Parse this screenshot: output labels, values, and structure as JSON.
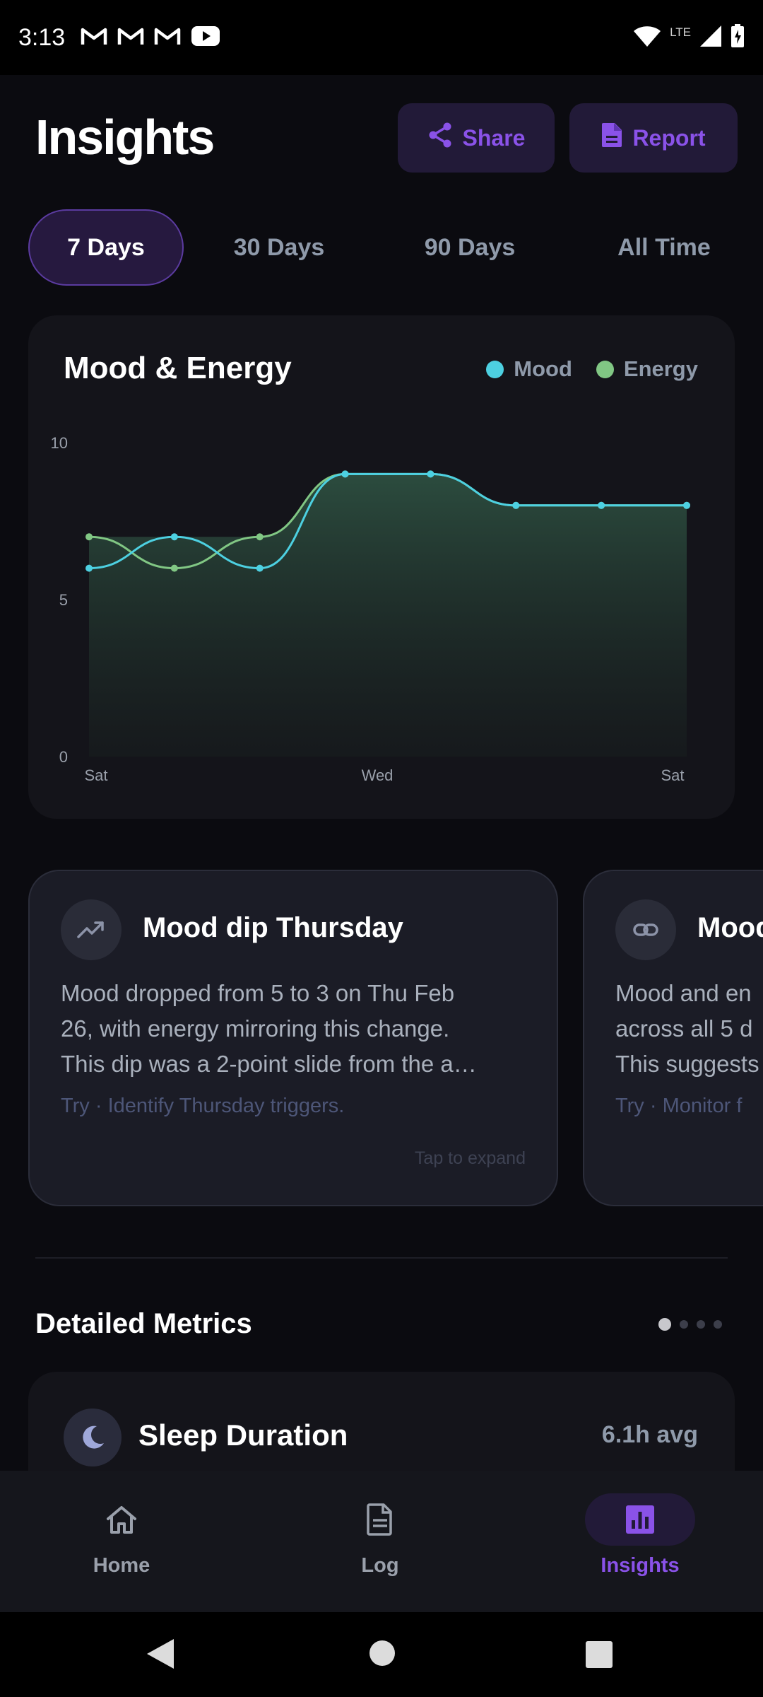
{
  "status_bar": {
    "time": "3:13",
    "network": "LTE",
    "icons": [
      "gmail-icon",
      "gmail-icon",
      "gmail-icon",
      "youtube-icon",
      "wifi-icon",
      "signal-icon",
      "battery-icon"
    ]
  },
  "header": {
    "title": "Insights",
    "share_label": "Share",
    "report_label": "Report"
  },
  "tabs": [
    {
      "label": "7 Days",
      "active": true
    },
    {
      "label": "30 Days",
      "active": false
    },
    {
      "label": "90 Days",
      "active": false
    },
    {
      "label": "All Time",
      "active": false
    }
  ],
  "chart_data": {
    "type": "line",
    "title": "Mood & Energy",
    "ylim": [
      0,
      10
    ],
    "y_ticks": [
      "10",
      "5",
      "0"
    ],
    "x_tick_labels": [
      "Sat",
      "Wed",
      "Sat"
    ],
    "x": [
      0,
      1,
      2,
      3,
      4,
      5,
      6,
      7
    ],
    "series": [
      {
        "name": "Mood",
        "color": "#4dd0e1",
        "values": [
          6,
          7,
          6,
          9,
          9,
          8,
          8,
          8
        ]
      },
      {
        "name": "Energy",
        "color": "#81c784",
        "values": [
          7,
          6,
          7,
          9,
          9,
          8,
          8,
          8
        ]
      }
    ],
    "legend": "top-right",
    "grid": false
  },
  "insights": [
    {
      "title": "Mood dip Thursday",
      "icon": "trending-icon",
      "body_lines": [
        "Mood dropped from 5 to 3 on Thu Feb",
        "26, with energy mirroring this change.",
        "This dip was a 2-point slide from the a…"
      ],
      "try": "Try · Identify Thursday triggers.",
      "expand": "Tap to expand"
    },
    {
      "title": "Mood",
      "icon": "link-icon",
      "body_lines": [
        "Mood and en",
        "across all 5 d",
        "This suggests"
      ],
      "try": "Try · Monitor f"
    }
  ],
  "metrics": {
    "section_title": "Detailed Metrics",
    "page_count": 4,
    "active_page": 0,
    "items": [
      {
        "title": "Sleep Duration",
        "value": "6.1h avg",
        "icon": "moon-icon"
      }
    ]
  },
  "bottom_nav": [
    {
      "label": "Home",
      "icon": "home-icon",
      "active": false
    },
    {
      "label": "Log",
      "icon": "document-icon",
      "active": false
    },
    {
      "label": "Insights",
      "icon": "bar-chart-icon",
      "active": true
    }
  ],
  "colors": {
    "accent": "#8a52e8",
    "background": "#0b0b10",
    "card": "#14141a",
    "mood": "#4dd0e1",
    "energy": "#81c784"
  }
}
